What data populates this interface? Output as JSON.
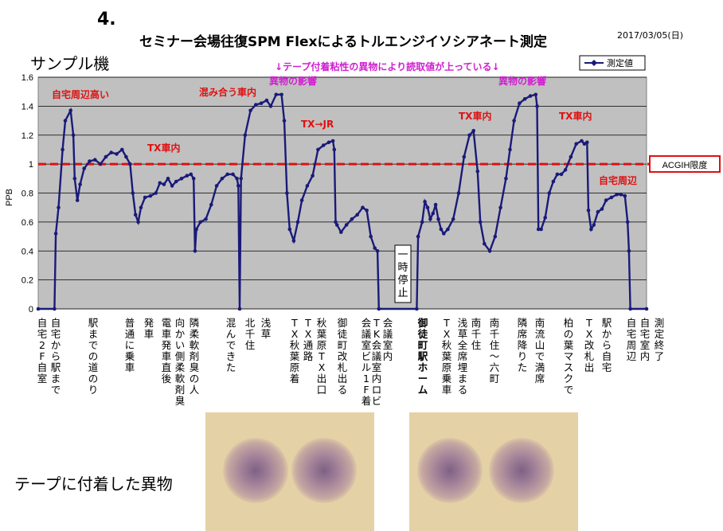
{
  "slide_number": "4.",
  "title": "セミナー会場往復SPM Flexによるトルエンジイソシアネート測定",
  "date": "2017/03/05(日)",
  "sample_label": "サンプル機",
  "tape_label": "テープに付着した異物",
  "chart_data": {
    "type": "line",
    "ylabel": "PPB",
    "ylim": [
      0,
      1.6
    ],
    "y_ticks": [
      "0",
      "0.2",
      "0.4",
      "0.6",
      "0.8",
      "1",
      "1.2",
      "1.4",
      "1.6"
    ],
    "grid": true,
    "background": "#c0c0c0",
    "series": [
      {
        "name": "測定値",
        "color": "#1a1a7a",
        "points": [
          [
            0,
            0
          ],
          [
            12,
            0
          ],
          [
            13,
            0.52
          ],
          [
            15,
            0.7
          ],
          [
            18,
            1.1
          ],
          [
            20,
            1.3
          ],
          [
            24,
            1.37
          ],
          [
            26,
            1.2
          ],
          [
            27,
            0.9
          ],
          [
            29,
            0.75
          ],
          [
            31,
            0.86
          ],
          [
            34,
            0.97
          ],
          [
            38,
            1.02
          ],
          [
            42,
            1.03
          ],
          [
            46,
            1.0
          ],
          [
            50,
            1.05
          ],
          [
            54,
            1.08
          ],
          [
            58,
            1.07
          ],
          [
            62,
            1.1
          ],
          [
            65,
            1.05
          ],
          [
            68,
            1.0
          ],
          [
            70,
            0.8
          ],
          [
            72,
            0.65
          ],
          [
            74,
            0.6
          ],
          [
            76,
            0.7
          ],
          [
            79,
            0.77
          ],
          [
            83,
            0.78
          ],
          [
            87,
            0.8
          ],
          [
            90,
            0.87
          ],
          [
            93,
            0.86
          ],
          [
            96,
            0.9
          ],
          [
            99,
            0.85
          ],
          [
            102,
            0.88
          ],
          [
            106,
            0.9
          ],
          [
            110,
            0.92
          ],
          [
            113,
            0.93
          ],
          [
            115,
            0.9
          ],
          [
            116,
            0.4
          ],
          [
            117,
            0.55
          ],
          [
            120,
            0.6
          ],
          [
            124,
            0.62
          ],
          [
            128,
            0.72
          ],
          [
            132,
            0.85
          ],
          [
            136,
            0.9
          ],
          [
            140,
            0.93
          ],
          [
            144,
            0.93
          ],
          [
            147,
            0.9
          ],
          [
            148,
            0.85
          ],
          [
            149,
            0
          ],
          [
            150,
            0.9
          ],
          [
            153,
            1.2
          ],
          [
            157,
            1.37
          ],
          [
            161,
            1.41
          ],
          [
            165,
            1.42
          ],
          [
            169,
            1.44
          ],
          [
            172,
            1.4
          ],
          [
            176,
            1.48
          ],
          [
            180,
            1.48
          ],
          [
            182,
            1.3
          ],
          [
            184,
            0.8
          ],
          [
            186,
            0.55
          ],
          [
            189,
            0.47
          ],
          [
            192,
            0.6
          ],
          [
            195,
            0.75
          ],
          [
            199,
            0.85
          ],
          [
            203,
            0.92
          ],
          [
            207,
            1.1
          ],
          [
            211,
            1.13
          ],
          [
            215,
            1.15
          ],
          [
            218,
            1.16
          ],
          [
            219,
            1.1
          ],
          [
            220,
            0.6
          ],
          [
            221,
            0.58
          ],
          [
            224,
            0.53
          ],
          [
            228,
            0.58
          ],
          [
            232,
            0.62
          ],
          [
            236,
            0.65
          ],
          [
            240,
            0.7
          ],
          [
            243,
            0.68
          ],
          [
            246,
            0.5
          ],
          [
            249,
            0.42
          ],
          [
            251,
            0.4
          ],
          [
            252,
            0
          ],
          [
            280,
            0
          ],
          [
            281,
            0.5
          ],
          [
            284,
            0.6
          ],
          [
            286,
            0.74
          ],
          [
            288,
            0.7
          ],
          [
            290,
            0.62
          ],
          [
            292,
            0.66
          ],
          [
            294,
            0.72
          ],
          [
            296,
            0.62
          ],
          [
            298,
            0.55
          ],
          [
            300,
            0.52
          ],
          [
            303,
            0.55
          ],
          [
            307,
            0.62
          ],
          [
            311,
            0.8
          ],
          [
            315,
            1.05
          ],
          [
            319,
            1.2
          ],
          [
            322,
            1.23
          ],
          [
            325,
            0.95
          ],
          [
            327,
            0.6
          ],
          [
            330,
            0.45
          ],
          [
            334,
            0.4
          ],
          [
            338,
            0.5
          ],
          [
            342,
            0.7
          ],
          [
            346,
            0.9
          ],
          [
            349,
            1.1
          ],
          [
            352,
            1.3
          ],
          [
            356,
            1.42
          ],
          [
            360,
            1.45
          ],
          [
            364,
            1.47
          ],
          [
            368,
            1.48
          ],
          [
            369,
            1.4
          ],
          [
            370,
            0.55
          ],
          [
            372,
            0.55
          ],
          [
            375,
            0.63
          ],
          [
            378,
            0.8
          ],
          [
            381,
            0.88
          ],
          [
            384,
            0.93
          ],
          [
            387,
            0.93
          ],
          [
            390,
            0.96
          ],
          [
            394,
            1.05
          ],
          [
            398,
            1.14
          ],
          [
            402,
            1.16
          ],
          [
            404,
            1.14
          ],
          [
            406,
            1.15
          ],
          [
            407,
            0.68
          ],
          [
            409,
            0.55
          ],
          [
            411,
            0.58
          ],
          [
            414,
            0.67
          ],
          [
            417,
            0.69
          ],
          [
            420,
            0.75
          ],
          [
            424,
            0.77
          ],
          [
            428,
            0.79
          ],
          [
            431,
            0.79
          ],
          [
            434,
            0.78
          ],
          [
            436,
            0.6
          ],
          [
            437,
            0.4
          ],
          [
            438,
            0
          ],
          [
            450,
            0
          ]
        ]
      }
    ],
    "limit_line": {
      "value": 1.0,
      "label": "ACGIH限度",
      "color": "#e01010"
    },
    "annotations": [
      {
        "text": "自宅周辺高い",
        "color": "#e01010"
      },
      {
        "text": "TX車内",
        "color": "#e01010"
      },
      {
        "text": "混み合う車内",
        "color": "#e01010"
      },
      {
        "text": "異物の影響",
        "color": "#d020d0"
      },
      {
        "text": "↓テープ付着粘性の異物により読取値が上っている↓",
        "color": "#d020d0"
      },
      {
        "text": "TX→JR",
        "color": "#e01010"
      },
      {
        "text": "TX車内",
        "color": "#e01010"
      },
      {
        "text": "異物の影響",
        "color": "#d020d0"
      },
      {
        "text": "TX車内",
        "color": "#e01010"
      },
      {
        "text": "自宅周辺",
        "color": "#e01010"
      }
    ],
    "boxed_note": "一時停止",
    "event_labels": [
      {
        "text": "自宅2F自室",
        "bold": false
      },
      {
        "text": "自宅から駅まで",
        "bold": false
      },
      {
        "text": "駅までの道のり",
        "bold": false
      },
      {
        "text": "普通に乗車",
        "bold": false
      },
      {
        "text": "発車",
        "bold": false
      },
      {
        "text": "電車発車直後",
        "bold": false
      },
      {
        "text": "向かい側柔軟剤臭",
        "bold": false
      },
      {
        "text": "隣柔軟剤臭の人",
        "bold": false
      },
      {
        "text": "混んできた",
        "bold": false
      },
      {
        "text": "北千住",
        "bold": false
      },
      {
        "text": "浅草",
        "bold": false
      },
      {
        "text": "TX秋葉原着",
        "bold": false
      },
      {
        "text": "TX通路",
        "bold": false
      },
      {
        "text": "秋葉原TX出口",
        "bold": false
      },
      {
        "text": "御徒町改札出る",
        "bold": false
      },
      {
        "text": "会議室ビル1F着",
        "bold": false
      },
      {
        "text": "TK会議室内ロビー",
        "bold": false
      },
      {
        "text": "会議室内",
        "bold": false
      },
      {
        "text": "御徒町駅ホーム",
        "bold": true
      },
      {
        "text": "TX秋葉原乗車",
        "bold": false
      },
      {
        "text": "浅草全席埋まる",
        "bold": false
      },
      {
        "text": "南千住",
        "bold": false
      },
      {
        "text": "南千住〜六町",
        "bold": false
      },
      {
        "text": "隣席降りた",
        "bold": false
      },
      {
        "text": "南流山で満席",
        "bold": false
      },
      {
        "text": "柏の葉マスクで",
        "bold": false
      },
      {
        "text": "TX改札出",
        "bold": false
      },
      {
        "text": "駅から自宅",
        "bold": false
      },
      {
        "text": "自宅周辺",
        "bold": false
      },
      {
        "text": "自宅室内",
        "bold": false
      },
      {
        "text": "測定終了",
        "bold": false
      }
    ]
  }
}
